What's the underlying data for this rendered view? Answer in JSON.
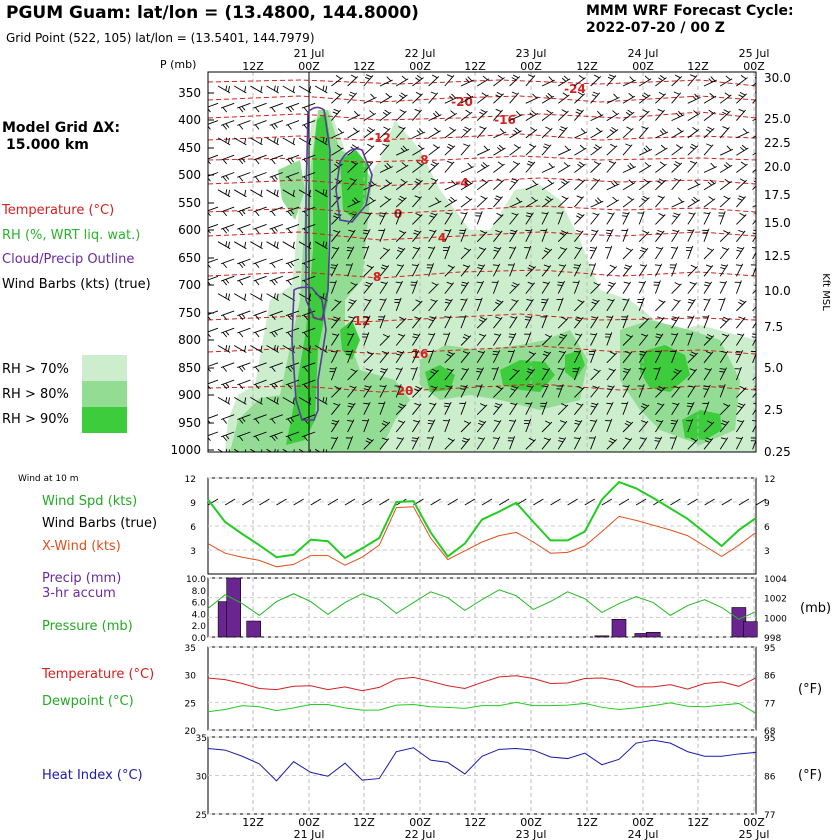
{
  "header": {
    "title": "PGUM Guam:  lat/lon = (13.4800, 144.8000)",
    "grid_point": "Grid Point (522, 105) lat/lon = (13.5401, 144.7979)",
    "cycle_line1": "MMM WRF Forecast Cycle:",
    "cycle_line2": "2022-07-20 / 00  Z"
  },
  "sidebar": {
    "grid_label": "Model Grid ΔX:",
    "grid_value": "15.000 km",
    "legend_temperature": "Temperature (°C)",
    "legend_rh": "RH (%, WRT liq. wat.)",
    "legend_cloud": "Cloud/Precip Outline",
    "legend_wind": "Wind Barbs (kts) (true)",
    "rh_levels": [
      "RH > 70%",
      "RH > 80%",
      "RH > 90%"
    ],
    "rh_colors": [
      "#cdeecd",
      "#93dc93",
      "#3ccc3c"
    ]
  },
  "colors": {
    "temperature": "#d42020",
    "rh": "#3ccc3c",
    "cloud": "#5a3a9a",
    "wind_spd": "#22cc22",
    "xwind": "#e0501a",
    "precip": "#6a2590",
    "pressure": "#22bb22",
    "dewpoint": "#22cc22",
    "heat_index": "#1a1aa8"
  },
  "time_axis": {
    "top_hours": [
      "12Z",
      "00Z",
      "12Z",
      "00Z",
      "12Z",
      "00Z",
      "12Z",
      "00Z",
      "12Z",
      "00Z"
    ],
    "dates": [
      "21 Jul",
      "22 Jul",
      "23 Jul",
      "24 Jul",
      "25 Jul"
    ],
    "bottom_hours": [
      "12Z",
      "00Z",
      "12Z",
      "00Z",
      "12Z",
      "00Z",
      "12Z",
      "00Z",
      "12Z",
      "00Z"
    ]
  },
  "cross_section": {
    "p_label": "P (mb)",
    "p_ticks": [
      "350",
      "400",
      "450",
      "500",
      "550",
      "600",
      "650",
      "700",
      "750",
      "800",
      "850",
      "900",
      "950",
      "1000"
    ],
    "kft_ticks": [
      "30.0",
      "25.0",
      "22.5",
      "20.0",
      "17.5",
      "15.0",
      "12.5",
      "10.0",
      "7.5",
      "5.0",
      "2.5",
      "0.25"
    ],
    "kft_label": "Kft MSL",
    "isotherm_labels": [
      "-24",
      "-20",
      "-16",
      "-12",
      "-8",
      "-4",
      "0",
      "4",
      "8",
      "12",
      "16",
      "20"
    ]
  },
  "panel_wind": {
    "title": "Wind at 10 m",
    "legend": [
      "Wind Spd (kts)",
      "Wind Barbs (true)",
      "X-Wind (kts)"
    ],
    "y_ticks": [
      "12",
      "9",
      "6",
      "3"
    ]
  },
  "panel_precip": {
    "legend": [
      "Precip (mm)",
      "3-hr accum",
      "Pressure (mb)"
    ],
    "left_ticks": [
      "10.0",
      "8.0",
      "6.0",
      "4.0",
      "2.0",
      "0.0"
    ],
    "right_ticks": [
      "1004",
      "1002",
      "1000",
      "998"
    ],
    "unit_right": "(mb)"
  },
  "panel_temp": {
    "legend": [
      "Temperature (°C)",
      "Dewpoint (°C)"
    ],
    "left_ticks": [
      "35",
      "30",
      "25",
      "20"
    ],
    "right_ticks": [
      "95",
      "86",
      "77",
      "68"
    ],
    "unit_right": "(°F)"
  },
  "panel_heat": {
    "legend": [
      "Heat Index (°C)"
    ],
    "left_ticks": [
      "35",
      "30",
      "25"
    ],
    "right_ticks": [
      "95",
      "86",
      "77"
    ],
    "unit_right": "(°F)"
  },
  "chart_data": [
    {
      "type": "line",
      "name": "wind_10m",
      "x_hours": [
        0,
        3,
        6,
        9,
        12,
        15,
        18,
        21,
        24,
        27,
        30,
        33,
        36,
        39,
        42,
        45,
        48,
        51,
        54,
        57,
        60,
        63,
        66,
        69,
        72,
        75,
        78,
        81,
        84,
        87,
        90,
        93,
        96
      ],
      "series": [
        {
          "name": "Wind Spd (kts)",
          "values": [
            9.3,
            6.5,
            5,
            3.6,
            2.1,
            2.4,
            4.3,
            4.1,
            2,
            3.2,
            4.5,
            9,
            9.1,
            5.2,
            2.2,
            3.8,
            6.8,
            7.8,
            8.9,
            6.5,
            4.2,
            4.2,
            5.3,
            9.3,
            11.5,
            10.7,
            9.5,
            8.2,
            6.9,
            5.2,
            3.5,
            5.5,
            7
          ]
        },
        {
          "name": "X-Wind (kts)",
          "values": [
            3.8,
            2.6,
            2.1,
            1.7,
            0.9,
            1.2,
            2.3,
            2.3,
            1.1,
            2.1,
            3.6,
            8.3,
            8.4,
            4.5,
            1.8,
            2.9,
            4,
            4.8,
            5.2,
            4,
            2.6,
            2.7,
            3.5,
            5.3,
            7.2,
            6.7,
            6.1,
            5.5,
            4.8,
            3.5,
            2.2,
            3.6,
            5.2
          ]
        }
      ],
      "ylim": [
        0,
        12
      ]
    },
    {
      "type": "bar",
      "name": "precip_3hr",
      "x_hours": [
        3,
        6,
        9,
        48,
        51,
        54,
        57,
        60,
        63,
        66,
        69,
        72,
        75,
        78,
        81,
        84,
        87,
        90,
        93,
        96,
        27,
        30,
        33,
        36,
        39,
        42,
        45
      ],
      "bars": [
        {
          "hour": 3,
          "value": 6.0
        },
        {
          "hour": 4.5,
          "value": 10.0
        },
        {
          "hour": 8,
          "value": 2.7
        },
        {
          "hour": 69,
          "value": 0.2
        },
        {
          "hour": 72,
          "value": 3.0
        },
        {
          "hour": 76,
          "value": 0.6
        },
        {
          "hour": 78,
          "value": 0.8
        },
        {
          "hour": 93,
          "value": 5.0
        },
        {
          "hour": 95,
          "value": 2.6
        }
      ],
      "ylim": [
        0,
        10
      ]
    },
    {
      "type": "line",
      "name": "pressure",
      "x_hours": [
        0,
        3,
        6,
        9,
        12,
        15,
        18,
        21,
        24,
        27,
        30,
        33,
        36,
        39,
        42,
        45,
        48,
        51,
        54,
        57,
        60,
        63,
        66,
        69,
        72,
        75,
        78,
        81,
        84,
        87,
        90,
        93,
        96
      ],
      "values": [
        1000.9,
        1002.3,
        1001.4,
        1000.2,
        1001.6,
        1002.4,
        1001.6,
        1000.3,
        1001.5,
        1002.4,
        1001.8,
        1000.4,
        1001.5,
        1002.6,
        1002,
        1000.7,
        1001.8,
        1002.8,
        1002.2,
        1000.8,
        1001.6,
        1002.6,
        1001.9,
        1000.5,
        1001.4,
        1002.1,
        1001.5,
        1000.2,
        1001.2,
        1001.8,
        1001,
        999.8,
        1000.6
      ],
      "ylim": [
        998,
        1004
      ]
    },
    {
      "type": "line",
      "name": "temperature_dewpoint",
      "x_hours": [
        0,
        3,
        6,
        9,
        12,
        15,
        18,
        21,
        24,
        27,
        30,
        33,
        36,
        39,
        42,
        45,
        48,
        51,
        54,
        57,
        60,
        63,
        66,
        69,
        72,
        75,
        78,
        81,
        84,
        87,
        90,
        93,
        96
      ],
      "series": [
        {
          "name": "Temperature (°C)",
          "values": [
            29.4,
            29.1,
            28.4,
            27.5,
            27.3,
            27.9,
            28,
            27.3,
            27.8,
            27.1,
            27.7,
            29.2,
            29.5,
            28.8,
            28,
            27.5,
            28.6,
            29.6,
            29.8,
            29.3,
            28.4,
            28.5,
            29.3,
            29.4,
            28.9,
            27.8,
            27.8,
            28.2,
            27.4,
            28.4,
            28.7,
            27.9,
            29.4
          ]
        },
        {
          "name": "Dewpoint (°C)",
          "values": [
            23.3,
            23.7,
            24.4,
            24.2,
            23.5,
            24,
            24.6,
            24.6,
            24,
            23.6,
            23.6,
            24.5,
            24.6,
            24.2,
            24.1,
            23.9,
            24.4,
            24.4,
            25,
            24.4,
            24.4,
            24.5,
            24.8,
            24.1,
            23.7,
            24,
            24.4,
            24.9,
            24.3,
            24.2,
            24.5,
            24.8,
            23
          ]
        }
      ],
      "ylim": [
        20,
        35
      ]
    },
    {
      "type": "line",
      "name": "heat_index",
      "x_hours": [
        0,
        3,
        6,
        9,
        12,
        15,
        18,
        21,
        24,
        27,
        30,
        33,
        36,
        39,
        42,
        45,
        48,
        51,
        54,
        57,
        60,
        63,
        66,
        69,
        72,
        75,
        78,
        81,
        84,
        87,
        90,
        93,
        96
      ],
      "series": [
        {
          "name": "Heat Index (°C)",
          "values": [
            33.5,
            33.3,
            32.5,
            31.5,
            29.3,
            31.8,
            30.4,
            29.9,
            31.6,
            29.4,
            29.6,
            33.1,
            33.6,
            32,
            31.7,
            30.2,
            32.5,
            33.4,
            33.5,
            33.3,
            32.4,
            32.2,
            32.9,
            31.4,
            32.1,
            34.2,
            34.6,
            34.2,
            33.1,
            32.5,
            32.5,
            32.8,
            33
          ]
        }
      ],
      "ylim": [
        25,
        35
      ]
    }
  ]
}
